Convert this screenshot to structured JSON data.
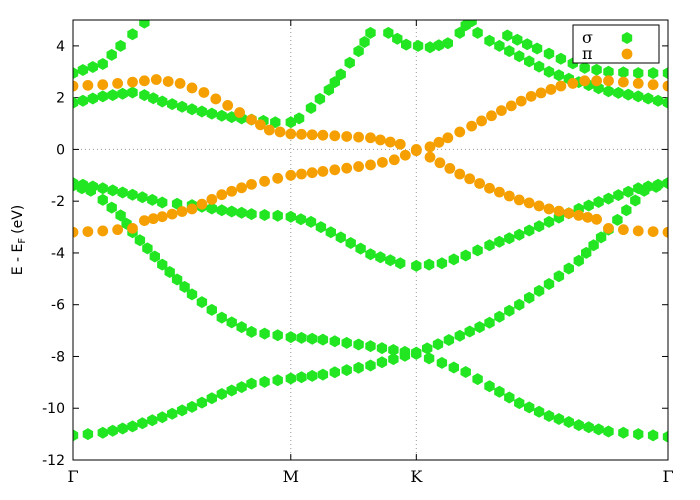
{
  "chart_data": {
    "type": "scatter",
    "title": "",
    "xlabel": "",
    "ylabel": "E - E",
    "ylabel_sub": "F",
    "ylabel_unit": "(eV)",
    "xlim": [
      0,
      1
    ],
    "ylim": [
      -12,
      5
    ],
    "yticks": [
      -12,
      -10,
      -8,
      -6,
      -4,
      -2,
      0,
      2,
      4
    ],
    "ytick_labels": [
      "-12",
      "-10",
      "-8",
      "-6",
      "-4",
      "-2",
      "0",
      "2",
      "4"
    ],
    "kpoints": [
      {
        "label": "Γ",
        "x": 0
      },
      {
        "label": "M",
        "x": 0.366
      },
      {
        "label": "K",
        "x": 0.577
      },
      {
        "label": "Γ",
        "x": 1
      }
    ],
    "grid": "dotted at M, K and E=0",
    "legend": "top-right",
    "series": [
      {
        "name": "σ",
        "marker": "hexagon",
        "color": "#22e622",
        "bands": [
          [
            [
              0,
              -11.05
            ],
            [
              0.05,
              -10.95
            ],
            [
              0.1,
              -10.7
            ],
            [
              0.15,
              -10.35
            ],
            [
              0.2,
              -9.95
            ],
            [
              0.25,
              -9.45
            ],
            [
              0.3,
              -9.05
            ],
            [
              0.366,
              -8.85
            ],
            [
              0.42,
              -8.7
            ],
            [
              0.5,
              -8.35
            ],
            [
              0.577,
              -7.85
            ],
            [
              0.65,
              -7.2
            ],
            [
              0.7,
              -6.7
            ],
            [
              0.75,
              -6.0
            ],
            [
              0.8,
              -5.2
            ],
            [
              0.85,
              -4.3
            ],
            [
              0.9,
              -3.1
            ],
            [
              0.93,
              -2.35
            ],
            [
              0.96,
              -1.6
            ],
            [
              1,
              -1.3
            ]
          ],
          [
            [
              0,
              -1.3
            ],
            [
              0.05,
              -1.5
            ],
            [
              0.1,
              -1.75
            ],
            [
              0.15,
              -2.05
            ],
            [
              0.2,
              -2.15
            ],
            [
              0.25,
              -2.35
            ],
            [
              0.3,
              -2.5
            ],
            [
              0.366,
              -2.6
            ],
            [
              0.4,
              -2.8
            ],
            [
              0.45,
              -3.4
            ],
            [
              0.5,
              -4.05
            ],
            [
              0.55,
              -4.4
            ],
            [
              0.577,
              -4.5
            ],
            [
              0.62,
              -4.4
            ],
            [
              0.66,
              -4.1
            ],
            [
              0.7,
              -3.7
            ],
            [
              0.75,
              -3.3
            ],
            [
              0.8,
              -2.8
            ],
            [
              0.85,
              -2.3
            ],
            [
              0.9,
              -1.9
            ],
            [
              0.95,
              -1.5
            ],
            [
              1,
              -1.3
            ]
          ],
          [
            [
              0,
              -1.4
            ],
            [
              0.03,
              -1.6
            ],
            [
              0.05,
              -1.95
            ],
            [
              0.08,
              -2.55
            ],
            [
              0.1,
              -3.2
            ],
            [
              0.15,
              -4.45
            ],
            [
              0.2,
              -5.6
            ],
            [
              0.25,
              -6.5
            ],
            [
              0.3,
              -7.05
            ],
            [
              0.366,
              -7.25
            ],
            [
              0.42,
              -7.35
            ],
            [
              0.5,
              -7.6
            ],
            [
              0.577,
              -7.9
            ],
            [
              0.62,
              -8.25
            ],
            [
              0.66,
              -8.6
            ],
            [
              0.7,
              -9.15
            ],
            [
              0.75,
              -9.8
            ],
            [
              0.8,
              -10.3
            ],
            [
              0.85,
              -10.65
            ],
            [
              0.9,
              -10.9
            ],
            [
              0.95,
              -11.0
            ],
            [
              1,
              -11.1
            ]
          ],
          [
            [
              0,
              1.8
            ],
            [
              0.05,
              2.05
            ],
            [
              0.1,
              2.2
            ],
            [
              0.12,
              2.1
            ],
            [
              0.15,
              1.85
            ],
            [
              0.2,
              1.55
            ],
            [
              0.25,
              1.3
            ],
            [
              0.3,
              1.15
            ],
            [
              0.34,
              1.05
            ],
            [
              0.366,
              1.05
            ],
            [
              0.38,
              1.2
            ],
            [
              0.4,
              1.6
            ],
            [
              0.43,
              2.3
            ],
            [
              0.45,
              2.9
            ],
            [
              0.48,
              3.8
            ],
            [
              0.5,
              4.5
            ]
          ],
          [
            [
              0,
              2.95
            ],
            [
              0.05,
              3.3
            ],
            [
              0.08,
              4.0
            ],
            [
              0.1,
              4.45
            ],
            [
              0.12,
              4.9
            ]
          ],
          [
            [
              0.53,
              4.5
            ],
            [
              0.56,
              4.05
            ],
            [
              0.6,
              3.95
            ],
            [
              0.63,
              4.1
            ],
            [
              0.65,
              4.5
            ],
            [
              0.67,
              4.95
            ]
          ],
          [
            [
              0.73,
              4.4
            ],
            [
              0.78,
              3.9
            ],
            [
              0.82,
              3.5
            ],
            [
              0.86,
              3.15
            ],
            [
              0.9,
              3.0
            ],
            [
              0.95,
              2.95
            ],
            [
              1,
              2.95
            ]
          ],
          [
            [
              0.66,
              4.8
            ],
            [
              0.7,
              4.2
            ],
            [
              0.75,
              3.6
            ],
            [
              0.8,
              3.0
            ],
            [
              0.85,
              2.6
            ],
            [
              0.9,
              2.25
            ],
            [
              0.95,
              2.05
            ],
            [
              1,
              1.8
            ]
          ]
        ]
      },
      {
        "name": "π",
        "marker": "circle",
        "color": "#f5a000",
        "bands": [
          [
            [
              0,
              2.45
            ],
            [
              0.05,
              2.5
            ],
            [
              0.1,
              2.6
            ],
            [
              0.14,
              2.7
            ],
            [
              0.18,
              2.55
            ],
            [
              0.22,
              2.2
            ],
            [
              0.26,
              1.7
            ],
            [
              0.3,
              1.15
            ],
            [
              0.33,
              0.75
            ],
            [
              0.366,
              0.6
            ],
            [
              0.42,
              0.55
            ],
            [
              0.5,
              0.45
            ],
            [
              0.55,
              0.2
            ],
            [
              0.577,
              0.0
            ],
            [
              0.6,
              0.1
            ],
            [
              0.63,
              0.45
            ],
            [
              0.67,
              0.9
            ],
            [
              0.72,
              1.5
            ],
            [
              0.77,
              2.05
            ],
            [
              0.82,
              2.45
            ],
            [
              0.86,
              2.65
            ],
            [
              0.9,
              2.65
            ],
            [
              0.95,
              2.55
            ],
            [
              1,
              2.45
            ]
          ],
          [
            [
              0,
              -3.2
            ],
            [
              0.05,
              -3.15
            ],
            [
              0.1,
              -3.05
            ],
            [
              0.12,
              -2.75
            ],
            [
              0.15,
              -2.6
            ],
            [
              0.2,
              -2.3
            ],
            [
              0.25,
              -1.75
            ],
            [
              0.3,
              -1.35
            ],
            [
              0.366,
              -1.0
            ],
            [
              0.42,
              -0.85
            ],
            [
              0.5,
              -0.6
            ],
            [
              0.54,
              -0.4
            ],
            [
              0.577,
              -0.05
            ],
            [
              0.6,
              -0.3
            ],
            [
              0.65,
              -0.95
            ],
            [
              0.7,
              -1.5
            ],
            [
              0.75,
              -1.95
            ],
            [
              0.8,
              -2.3
            ],
            [
              0.85,
              -2.55
            ],
            [
              0.88,
              -2.7
            ],
            [
              0.9,
              -3.05
            ],
            [
              0.95,
              -3.15
            ],
            [
              1,
              -3.2
            ]
          ]
        ]
      }
    ]
  }
}
